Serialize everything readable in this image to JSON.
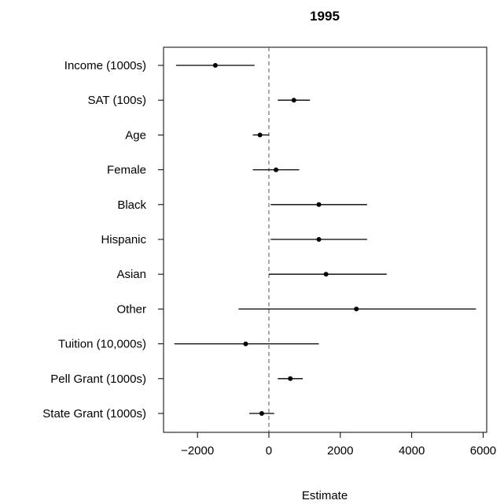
{
  "chart_data": {
    "type": "scatter",
    "title": "1995",
    "xlabel": "Estimate",
    "ylabel": "",
    "xlim": [
      -2950,
      6100
    ],
    "x_ticks": [
      -2000,
      0,
      2000,
      4000,
      6000
    ],
    "x_tick_labels": [
      "−2000",
      "0",
      "2000",
      "4000",
      "6000"
    ],
    "reference_line": 0,
    "grid": false,
    "categories": [
      "Income (1000s)",
      "SAT (100s)",
      "Age",
      "Female",
      "Black",
      "Hispanic",
      "Asian",
      "Other",
      "Tuition (10,000s)",
      "Pell Grant (1000s)",
      "State Grant (1000s)"
    ],
    "estimates": [
      -1500,
      700,
      -250,
      200,
      1400,
      1400,
      1600,
      2450,
      -650,
      600,
      -200
    ],
    "lower": [
      -2600,
      250,
      -450,
      -450,
      50,
      50,
      0,
      -850,
      -2650,
      250,
      -550
    ],
    "upper": [
      -400,
      1150,
      0,
      850,
      2750,
      2750,
      3300,
      5800,
      1400,
      950,
      150
    ],
    "colors": {
      "marks": "#000000",
      "reference_line": "#555555"
    }
  }
}
